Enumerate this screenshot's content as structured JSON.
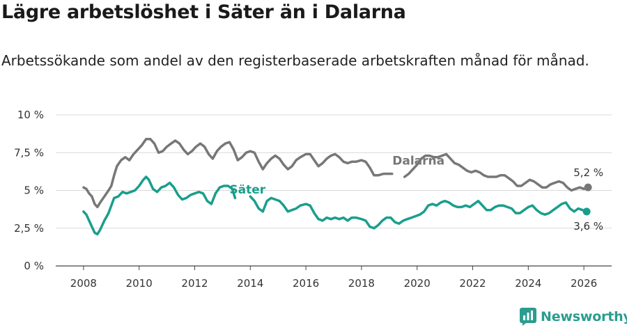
{
  "title": "Lägre arbetslöshet i Säter än i Dalarna",
  "subtitle": "Arbetssökande som andel av den registerbaserade arbetskraften månad för månad.",
  "brand": {
    "name": "Newsworthy",
    "color": "#2a9d8f",
    "icon": "newsworthy-logo-icon"
  },
  "chart_data": {
    "type": "line",
    "title": "Lägre arbetslöshet i Säter än i Dalarna",
    "subtitle": "Arbetssökande som andel av den registerbaserade arbetskraften månad för månad.",
    "xlabel": "",
    "ylabel": "",
    "xlim": [
      2007.0,
      2027.0
    ],
    "ylim": [
      0,
      10
    ],
    "grid": true,
    "x_ticks": [
      2008,
      2010,
      2012,
      2014,
      2016,
      2018,
      2020,
      2022,
      2024,
      2026
    ],
    "y_ticks": [
      0,
      2.5,
      5,
      7.5,
      10
    ],
    "y_tick_labels": [
      "0 %",
      "2,5 %",
      "5 %",
      "7,5 %",
      "10 %"
    ],
    "series": [
      {
        "name": "Dalarna",
        "color": "#777777",
        "label_value": "5,2 %",
        "points": [
          [
            2008.0,
            5.2
          ],
          [
            2008.1,
            5.1
          ],
          [
            2008.2,
            4.8
          ],
          [
            2008.3,
            4.6
          ],
          [
            2008.4,
            4.1
          ],
          [
            2008.5,
            3.9
          ],
          [
            2008.6,
            4.2
          ],
          [
            2008.75,
            4.6
          ],
          [
            2008.9,
            5.0
          ],
          [
            2009.0,
            5.3
          ],
          [
            2009.1,
            6.0
          ],
          [
            2009.2,
            6.6
          ],
          [
            2009.35,
            7.0
          ],
          [
            2009.5,
            7.2
          ],
          [
            2009.65,
            7.0
          ],
          [
            2009.8,
            7.4
          ],
          [
            2009.95,
            7.7
          ],
          [
            2010.1,
            8.0
          ],
          [
            2010.25,
            8.4
          ],
          [
            2010.4,
            8.4
          ],
          [
            2010.55,
            8.1
          ],
          [
            2010.7,
            7.5
          ],
          [
            2010.85,
            7.6
          ],
          [
            2011.0,
            7.9
          ],
          [
            2011.15,
            8.1
          ],
          [
            2011.3,
            8.3
          ],
          [
            2011.45,
            8.1
          ],
          [
            2011.6,
            7.7
          ],
          [
            2011.75,
            7.4
          ],
          [
            2011.9,
            7.6
          ],
          [
            2012.05,
            7.9
          ],
          [
            2012.2,
            8.1
          ],
          [
            2012.35,
            7.9
          ],
          [
            2012.5,
            7.4
          ],
          [
            2012.65,
            7.1
          ],
          [
            2012.8,
            7.6
          ],
          [
            2012.95,
            7.9
          ],
          [
            2013.1,
            8.1
          ],
          [
            2013.25,
            8.2
          ],
          [
            2013.4,
            7.7
          ],
          [
            2013.55,
            7.0
          ],
          [
            2013.7,
            7.2
          ],
          [
            2013.85,
            7.5
          ],
          [
            2014.0,
            7.6
          ],
          [
            2014.15,
            7.5
          ],
          [
            2014.3,
            6.9
          ],
          [
            2014.45,
            6.4
          ],
          [
            2014.6,
            6.8
          ],
          [
            2014.75,
            7.1
          ],
          [
            2014.9,
            7.3
          ],
          [
            2015.05,
            7.1
          ],
          [
            2015.2,
            6.7
          ],
          [
            2015.35,
            6.4
          ],
          [
            2015.5,
            6.6
          ],
          [
            2015.65,
            7.0
          ],
          [
            2015.8,
            7.2
          ],
          [
            2016.0,
            7.4
          ],
          [
            2016.15,
            7.4
          ],
          [
            2016.3,
            7.0
          ],
          [
            2016.45,
            6.6
          ],
          [
            2016.6,
            6.8
          ],
          [
            2016.75,
            7.1
          ],
          [
            2016.9,
            7.3
          ],
          [
            2017.05,
            7.4
          ],
          [
            2017.2,
            7.2
          ],
          [
            2017.35,
            6.9
          ],
          [
            2017.5,
            6.8
          ],
          [
            2017.65,
            6.9
          ],
          [
            2017.8,
            6.9
          ],
          [
            2018.0,
            7.0
          ],
          [
            2018.15,
            6.9
          ],
          [
            2018.3,
            6.5
          ],
          [
            2018.45,
            6.0
          ],
          [
            2018.6,
            6.0
          ],
          [
            2018.8,
            6.1
          ],
          [
            2018.95,
            6.1
          ],
          [
            2019.1,
            6.1
          ],
          [
            2019.25,
            6.0
          ],
          [
            2019.4,
            5.8
          ],
          [
            2019.55,
            5.9
          ],
          [
            2019.7,
            6.1
          ],
          [
            2019.85,
            6.4
          ],
          [
            2020.0,
            6.7
          ],
          [
            2020.15,
            7.1
          ],
          [
            2020.3,
            7.3
          ],
          [
            2020.45,
            7.3
          ],
          [
            2020.6,
            7.2
          ],
          [
            2020.75,
            7.2
          ],
          [
            2020.9,
            7.3
          ],
          [
            2021.05,
            7.4
          ],
          [
            2021.2,
            7.1
          ],
          [
            2021.35,
            6.8
          ],
          [
            2021.5,
            6.7
          ],
          [
            2021.65,
            6.5
          ],
          [
            2021.8,
            6.3
          ],
          [
            2021.95,
            6.2
          ],
          [
            2022.1,
            6.3
          ],
          [
            2022.25,
            6.2
          ],
          [
            2022.4,
            6.0
          ],
          [
            2022.55,
            5.9
          ],
          [
            2022.7,
            5.9
          ],
          [
            2022.85,
            5.9
          ],
          [
            2023.0,
            6.0
          ],
          [
            2023.15,
            6.0
          ],
          [
            2023.3,
            5.8
          ],
          [
            2023.45,
            5.6
          ],
          [
            2023.6,
            5.3
          ],
          [
            2023.75,
            5.3
          ],
          [
            2023.9,
            5.5
          ],
          [
            2024.05,
            5.7
          ],
          [
            2024.2,
            5.6
          ],
          [
            2024.35,
            5.4
          ],
          [
            2024.5,
            5.2
          ],
          [
            2024.65,
            5.2
          ],
          [
            2024.8,
            5.4
          ],
          [
            2024.95,
            5.5
          ],
          [
            2025.1,
            5.6
          ],
          [
            2025.25,
            5.5
          ],
          [
            2025.4,
            5.2
          ],
          [
            2025.55,
            5.0
          ],
          [
            2025.7,
            5.1
          ],
          [
            2025.85,
            5.2
          ],
          [
            2026.0,
            5.1
          ],
          [
            2026.15,
            5.2
          ]
        ],
        "gap": [
          2019.15,
          2019.5
        ]
      },
      {
        "name": "Säter",
        "color": "#1a9e8c",
        "label_value": "3,6 %",
        "points": [
          [
            2008.0,
            3.6
          ],
          [
            2008.1,
            3.4
          ],
          [
            2008.2,
            3.0
          ],
          [
            2008.3,
            2.6
          ],
          [
            2008.4,
            2.2
          ],
          [
            2008.5,
            2.1
          ],
          [
            2008.6,
            2.4
          ],
          [
            2008.75,
            3.0
          ],
          [
            2008.9,
            3.5
          ],
          [
            2009.0,
            4.0
          ],
          [
            2009.1,
            4.5
          ],
          [
            2009.25,
            4.6
          ],
          [
            2009.4,
            4.9
          ],
          [
            2009.55,
            4.8
          ],
          [
            2009.7,
            4.9
          ],
          [
            2009.85,
            5.0
          ],
          [
            2010.0,
            5.3
          ],
          [
            2010.15,
            5.7
          ],
          [
            2010.25,
            5.9
          ],
          [
            2010.35,
            5.7
          ],
          [
            2010.5,
            5.1
          ],
          [
            2010.65,
            4.9
          ],
          [
            2010.8,
            5.2
          ],
          [
            2010.95,
            5.3
          ],
          [
            2011.1,
            5.5
          ],
          [
            2011.25,
            5.2
          ],
          [
            2011.4,
            4.7
          ],
          [
            2011.55,
            4.4
          ],
          [
            2011.7,
            4.5
          ],
          [
            2011.85,
            4.7
          ],
          [
            2012.0,
            4.8
          ],
          [
            2012.15,
            4.9
          ],
          [
            2012.3,
            4.8
          ],
          [
            2012.45,
            4.3
          ],
          [
            2012.6,
            4.1
          ],
          [
            2012.75,
            4.8
          ],
          [
            2012.9,
            5.2
          ],
          [
            2013.05,
            5.3
          ],
          [
            2013.2,
            5.3
          ],
          [
            2013.35,
            5.1
          ],
          [
            2013.45,
            4.5
          ],
          [
            2013.55,
            4.4
          ],
          [
            2013.7,
            4.6
          ],
          [
            2013.85,
            4.7
          ],
          [
            2014.0,
            4.6
          ],
          [
            2014.15,
            4.3
          ],
          [
            2014.3,
            3.8
          ],
          [
            2014.45,
            3.6
          ],
          [
            2014.6,
            4.3
          ],
          [
            2014.75,
            4.5
          ],
          [
            2014.9,
            4.4
          ],
          [
            2015.05,
            4.3
          ],
          [
            2015.2,
            4.0
          ],
          [
            2015.35,
            3.6
          ],
          [
            2015.5,
            3.7
          ],
          [
            2015.65,
            3.8
          ],
          [
            2015.8,
            4.0
          ],
          [
            2016.0,
            4.1
          ],
          [
            2016.15,
            4.0
          ],
          [
            2016.3,
            3.5
          ],
          [
            2016.45,
            3.1
          ],
          [
            2016.6,
            3.0
          ],
          [
            2016.75,
            3.2
          ],
          [
            2016.9,
            3.1
          ],
          [
            2017.05,
            3.2
          ],
          [
            2017.2,
            3.1
          ],
          [
            2017.35,
            3.2
          ],
          [
            2017.5,
            3.0
          ],
          [
            2017.65,
            3.2
          ],
          [
            2017.8,
            3.2
          ],
          [
            2018.0,
            3.1
          ],
          [
            2018.15,
            3.0
          ],
          [
            2018.3,
            2.6
          ],
          [
            2018.45,
            2.5
          ],
          [
            2018.6,
            2.7
          ],
          [
            2018.75,
            3.0
          ],
          [
            2018.9,
            3.2
          ],
          [
            2019.05,
            3.2
          ],
          [
            2019.2,
            2.9
          ],
          [
            2019.35,
            2.8
          ],
          [
            2019.5,
            3.0
          ],
          [
            2019.65,
            3.1
          ],
          [
            2019.8,
            3.2
          ],
          [
            2019.95,
            3.3
          ],
          [
            2020.1,
            3.4
          ],
          [
            2020.25,
            3.6
          ],
          [
            2020.4,
            4.0
          ],
          [
            2020.55,
            4.1
          ],
          [
            2020.7,
            4.0
          ],
          [
            2020.85,
            4.2
          ],
          [
            2021.0,
            4.3
          ],
          [
            2021.15,
            4.2
          ],
          [
            2021.3,
            4.0
          ],
          [
            2021.45,
            3.9
          ],
          [
            2021.6,
            3.9
          ],
          [
            2021.75,
            4.0
          ],
          [
            2021.9,
            3.9
          ],
          [
            2022.05,
            4.1
          ],
          [
            2022.2,
            4.3
          ],
          [
            2022.35,
            4.0
          ],
          [
            2022.5,
            3.7
          ],
          [
            2022.65,
            3.7
          ],
          [
            2022.8,
            3.9
          ],
          [
            2022.95,
            4.0
          ],
          [
            2023.1,
            4.0
          ],
          [
            2023.25,
            3.9
          ],
          [
            2023.4,
            3.8
          ],
          [
            2023.55,
            3.5
          ],
          [
            2023.7,
            3.5
          ],
          [
            2023.85,
            3.7
          ],
          [
            2024.0,
            3.9
          ],
          [
            2024.15,
            4.0
          ],
          [
            2024.3,
            3.7
          ],
          [
            2024.45,
            3.5
          ],
          [
            2024.6,
            3.4
          ],
          [
            2024.75,
            3.5
          ],
          [
            2024.9,
            3.7
          ],
          [
            2025.05,
            3.9
          ],
          [
            2025.2,
            4.1
          ],
          [
            2025.35,
            4.2
          ],
          [
            2025.5,
            3.8
          ],
          [
            2025.65,
            3.6
          ],
          [
            2025.8,
            3.8
          ],
          [
            2025.95,
            3.7
          ],
          [
            2026.1,
            3.6
          ]
        ],
        "gap": [
          2013.5,
          2013.9
        ]
      }
    ]
  }
}
